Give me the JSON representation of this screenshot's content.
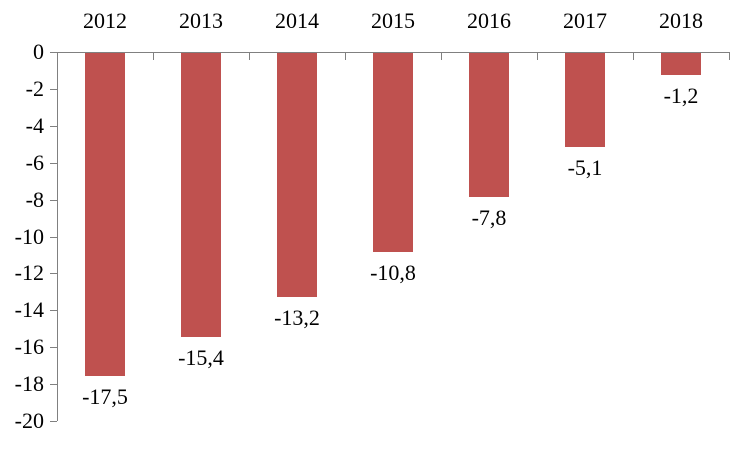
{
  "chart_data": {
    "type": "bar",
    "title": "",
    "xlabel": "",
    "ylabel": "",
    "categories": [
      "2012",
      "2013",
      "2014",
      "2015",
      "2016",
      "2017",
      "2018"
    ],
    "values": [
      -17.5,
      -15.4,
      -13.2,
      -10.8,
      -7.8,
      -5.1,
      -1.2
    ],
    "value_labels": [
      "-17,5",
      "-15,4",
      "-13,2",
      "-10,8",
      "-7,8",
      "-5,1",
      "-1,2"
    ],
    "ylim": [
      -20,
      0
    ],
    "y_tick_step": 2,
    "y_tick_labels": [
      "0",
      "-2",
      "-4",
      "-6",
      "-8",
      "-10",
      "-12",
      "-14",
      "-16",
      "-18",
      "-20"
    ],
    "grid": false,
    "legend": false,
    "category_axis_position": "top",
    "data_label_position": "below-bar",
    "decimal_separator": ",",
    "colors": {
      "bar": "#BF514F",
      "axis": "#808080",
      "text": "#000000",
      "background": "#FFFFFF"
    }
  }
}
